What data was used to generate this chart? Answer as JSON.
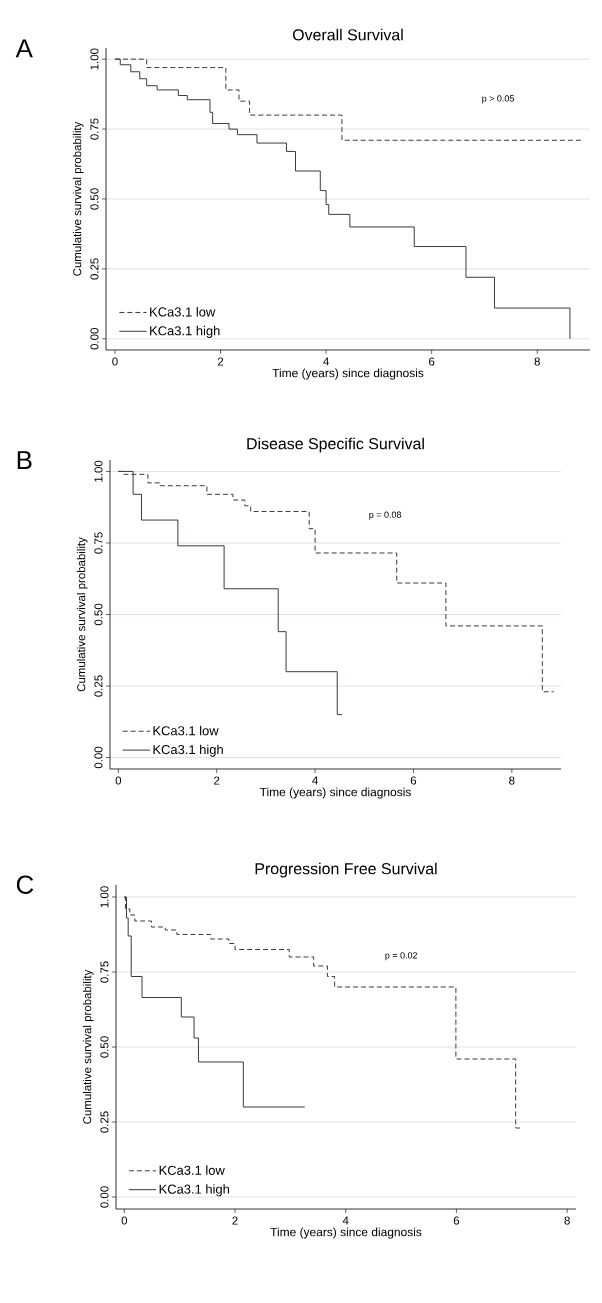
{
  "chart_data": [
    {
      "type": "step",
      "title": "Overall Survival",
      "xlabel": "Time (years) since diagnosis",
      "ylabel": "Cumulative survival probability",
      "annotations": [
        "A",
        "p > 0.05"
      ],
      "xlim": [
        -0.17,
        9.0
      ],
      "ylim": [
        -0.04,
        1.04
      ],
      "xticks": [
        0,
        2,
        4,
        6,
        8
      ],
      "yticks": [
        {
          "value": 0,
          "label": "0.00"
        },
        {
          "value": 0.25,
          "label": "0.25"
        },
        {
          "value": 0.5,
          "label": "0.50"
        },
        {
          "value": 0.75,
          "label": "0.75"
        },
        {
          "value": 1,
          "label": "1.00"
        }
      ],
      "grid": "y",
      "legend": "bottom left",
      "series": [
        {
          "name": "KCa3.1 low",
          "color": "#3a3a3a",
          "line_style": "dashed",
          "x": [
            0,
            0.6,
            2.1,
            2.35,
            2.55,
            4.3,
            8.85
          ],
          "values": [
            1,
            0.97,
            0.89,
            0.85,
            0.8,
            0.71,
            0.71
          ]
        },
        {
          "name": "KCa3.1 high",
          "color": "#3a3a3a",
          "line_style": "solid",
          "x": [
            0,
            0.1,
            0.3,
            0.47,
            0.6,
            0.8,
            1.2,
            1.37,
            1.8,
            1.85,
            2.16,
            2.32,
            2.69,
            3.25,
            3.42,
            3.89,
            4.0,
            4.05,
            4.45,
            5.67,
            6.65,
            7.19,
            8.62
          ],
          "values": [
            1,
            0.98,
            0.955,
            0.93,
            0.905,
            0.89,
            0.87,
            0.855,
            0.81,
            0.77,
            0.75,
            0.73,
            0.7,
            0.67,
            0.6,
            0.53,
            0.48,
            0.445,
            0.4,
            0.33,
            0.22,
            0.11,
            0
          ]
        }
      ]
    },
    {
      "type": "step",
      "title": "Disease Specific Survival",
      "xlabel": "Time (years) since diagnosis",
      "ylabel": "Cumulative survival probability",
      "annotations": [
        "B",
        "p = 0.08"
      ],
      "xlim": [
        -0.17,
        9.0
      ],
      "ylim": [
        -0.04,
        1.04
      ],
      "xticks": [
        0,
        2,
        4,
        6,
        8
      ],
      "yticks": [
        {
          "value": 0,
          "label": "0.00"
        },
        {
          "value": 0.25,
          "label": "0.25"
        },
        {
          "value": 0.5,
          "label": "0.50"
        },
        {
          "value": 0.75,
          "label": "0.75"
        },
        {
          "value": 1,
          "label": "1.00"
        }
      ],
      "grid": "y",
      "legend": "bottom left",
      "series": [
        {
          "name": "KCa3.1 low",
          "color": "#3a3a3a",
          "line_style": "dashed",
          "x": [
            0,
            0.1,
            0.6,
            0.85,
            1.8,
            2.33,
            2.57,
            2.69,
            3.88,
            4.0,
            5.66,
            6.66,
            8.62,
            8.85
          ],
          "values": [
            1,
            0.99,
            0.96,
            0.95,
            0.92,
            0.9,
            0.88,
            0.86,
            0.8,
            0.715,
            0.61,
            0.46,
            0.23,
            0.23
          ]
        },
        {
          "name": "KCa3.1 high",
          "color": "#3a3a3a",
          "line_style": "solid",
          "x": [
            0,
            0.3,
            0.47,
            1.21,
            2.15,
            3.25,
            3.41,
            4.45,
            4.55
          ],
          "values": [
            1,
            0.92,
            0.83,
            0.74,
            0.59,
            0.44,
            0.3,
            0.15,
            0.15
          ]
        }
      ]
    },
    {
      "type": "step",
      "title": "Progression Free Survival",
      "xlabel": "Time (years) since diagnosis",
      "ylabel": "Cumulative survival probability",
      "annotations": [
        "C",
        "p = 0.02"
      ],
      "xlim": [
        -0.15,
        8.16
      ],
      "ylim": [
        -0.04,
        1.04
      ],
      "xticks": [
        0,
        2,
        4,
        6,
        8
      ],
      "yticks": [
        {
          "value": 0,
          "label": "0.00"
        },
        {
          "value": 0.25,
          "label": "0.25"
        },
        {
          "value": 0.5,
          "label": "0.50"
        },
        {
          "value": 0.75,
          "label": "0.75"
        },
        {
          "value": 1,
          "label": "1.00"
        }
      ],
      "grid": "y",
      "legend": "bottom left",
      "series": [
        {
          "name": "KCa3.1 low",
          "color": "#3a3a3a",
          "line_style": "dashed",
          "x": [
            0,
            0.02,
            0.1,
            0.19,
            0.49,
            0.74,
            0.95,
            1.56,
            1.89,
            2.0,
            2.98,
            3.42,
            3.67,
            3.8,
            5.99,
            7.07,
            7.16
          ],
          "values": [
            1,
            0.96,
            0.94,
            0.92,
            0.9,
            0.89,
            0.875,
            0.86,
            0.845,
            0.825,
            0.8,
            0.77,
            0.735,
            0.7,
            0.46,
            0.23,
            0.23
          ]
        },
        {
          "name": "KCa3.1 high",
          "color": "#3a3a3a",
          "line_style": "solid",
          "x": [
            0,
            0.04,
            0.07,
            0.125,
            0.32,
            1.03,
            1.26,
            1.34,
            2.15,
            3.26
          ],
          "values": [
            1,
            0.93,
            0.87,
            0.735,
            0.665,
            0.6,
            0.53,
            0.45,
            0.3,
            0.3
          ]
        }
      ]
    }
  ]
}
